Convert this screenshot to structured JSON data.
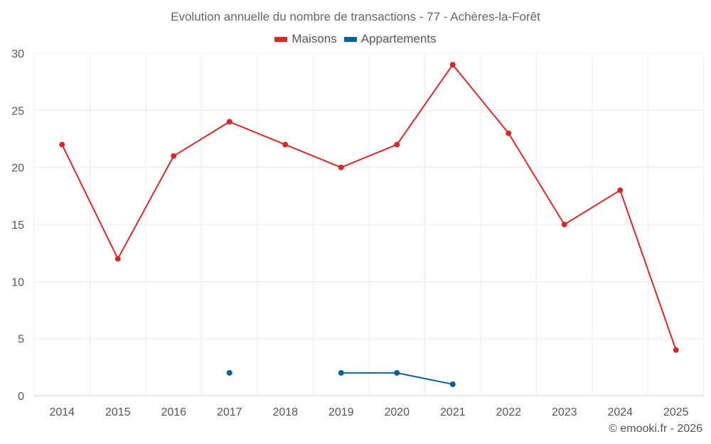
{
  "chart_data": {
    "type": "line",
    "title": "Evolution annuelle du nombre de transactions - 77 - Achères-la-Forêt",
    "categories": [
      "2014",
      "2015",
      "2016",
      "2017",
      "2018",
      "2019",
      "2020",
      "2021",
      "2022",
      "2023",
      "2024",
      "2025"
    ],
    "series": [
      {
        "name": "Maisons",
        "color": "#d42a2a",
        "values": [
          22,
          12,
          21,
          24,
          22,
          20,
          22,
          29,
          23,
          15,
          18,
          4
        ]
      },
      {
        "name": "Appartements",
        "color": "#0e6196",
        "values": [
          null,
          null,
          null,
          2,
          null,
          2,
          2,
          1,
          null,
          null,
          null,
          null
        ]
      }
    ],
    "yticks": [
      0,
      5,
      10,
      15,
      20,
      25,
      30
    ],
    "ylim": [
      0,
      30
    ],
    "xlabel": "",
    "ylabel": "",
    "grid": true,
    "legend": "top-center"
  },
  "footer": {
    "credit": "© emooki.fr - 2026"
  }
}
